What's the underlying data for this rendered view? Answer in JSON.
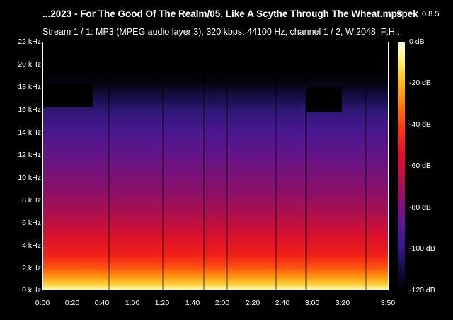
{
  "header": {
    "file_title": "...2023 - For The Good Of The Realm/05. Like A Scythe Through The Wheat.mp3",
    "app_name": "spek",
    "app_version": "0.8.5",
    "stream_info": "Stream 1 / 1: MP3 (MPEG audio layer 3), 320 kbps, 44100 Hz, channel 1 / 2, W:2048, F:H..."
  },
  "frequency_axis": [
    "22 kHz",
    "20 kHz",
    "18 kHz",
    "16 kHz",
    "14 kHz",
    "12 kHz",
    "10 kHz",
    "8 kHz",
    "6 kHz",
    "4 kHz",
    "2 kHz",
    "0 kHz"
  ],
  "time_axis": [
    "0:00",
    "0:20",
    "0:40",
    "1:00",
    "1:20",
    "1:40",
    "2:00",
    "2:20",
    "2:40",
    "3:00",
    "3:20",
    "3:50"
  ],
  "colorbar": [
    "0 dB",
    "-20 dB",
    "-40 dB",
    "-60 dB",
    "-80 dB",
    "-100 dB",
    "-120 dB"
  ],
  "colors": {
    "background": "#000000",
    "text": "#ffffff"
  }
}
